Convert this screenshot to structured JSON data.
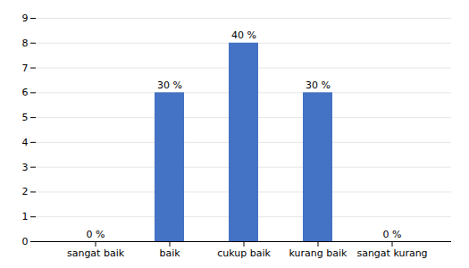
{
  "chart_data": {
    "type": "bar",
    "categories": [
      "sangat baik",
      "baik",
      "cukup baik",
      "kurang baik",
      "sangat kurang"
    ],
    "values": [
      0,
      6,
      8,
      6,
      0
    ],
    "value_labels": [
      "0 %",
      "30 %",
      "40 %",
      "30 %",
      "0 %"
    ],
    "data_labels": true,
    "color": "#4472C4",
    "ylim": [
      0,
      9
    ],
    "yticks": [
      0,
      1,
      2,
      3,
      4,
      5,
      6,
      7,
      8,
      9
    ],
    "grid": true
  }
}
